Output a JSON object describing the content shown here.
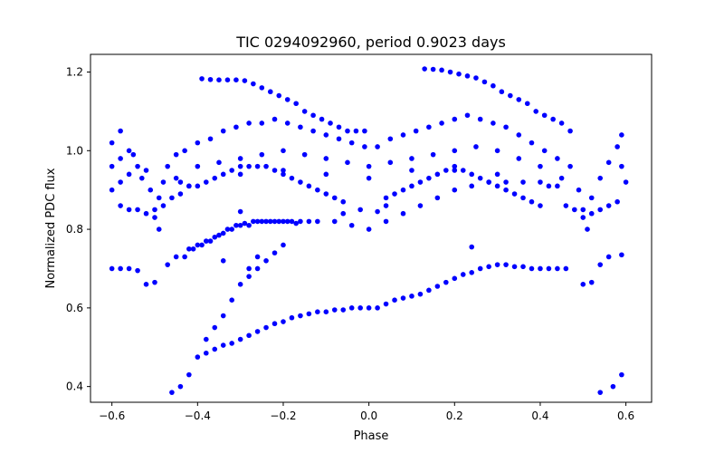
{
  "chart_data": {
    "type": "scatter",
    "title": "TIC 0294092960, period 0.9023 days",
    "xlabel": "Phase",
    "ylabel": "Normalized PDC flux",
    "xlim": [
      -0.65,
      0.66
    ],
    "ylim": [
      0.36,
      1.245
    ],
    "xticks": [
      -0.6,
      -0.4,
      -0.2,
      0.0,
      0.2,
      0.4,
      0.6
    ],
    "xtick_labels": [
      "−0.6",
      "−0.4",
      "−0.2",
      "0.0",
      "0.2",
      "0.4",
      "0.6"
    ],
    "yticks": [
      0.4,
      0.6,
      0.8,
      1.0,
      1.2
    ],
    "ytick_labels": [
      "0.4",
      "0.6",
      "0.8",
      "1.0",
      "1.2"
    ],
    "grid": false,
    "legend": "none",
    "marker_color": "#0000ff",
    "series": [
      {
        "points": [
          [
            -0.6,
            1.02
          ],
          [
            -0.6,
            0.96
          ],
          [
            -0.6,
            0.9
          ],
          [
            -0.58,
            1.05
          ],
          [
            -0.58,
            0.98
          ],
          [
            -0.58,
            0.92
          ],
          [
            -0.56,
            1.0
          ],
          [
            -0.56,
            0.94
          ],
          [
            -0.55,
            0.99
          ],
          [
            -0.54,
            0.96
          ],
          [
            -0.53,
            0.93
          ],
          [
            -0.52,
            0.95
          ],
          [
            -0.51,
            0.9
          ],
          [
            -0.5,
            0.85
          ],
          [
            -0.49,
            0.8
          ],
          [
            -0.49,
            0.88
          ],
          [
            -0.48,
            0.92
          ],
          [
            -0.47,
            0.96
          ],
          [
            -0.45,
            0.99
          ],
          [
            -0.43,
            1.0
          ],
          [
            -0.4,
            1.02
          ],
          [
            -0.37,
            1.03
          ],
          [
            -0.34,
            1.05
          ],
          [
            -0.31,
            1.06
          ],
          [
            -0.28,
            1.07
          ],
          [
            -0.25,
            1.07
          ],
          [
            -0.22,
            1.08
          ],
          [
            -0.19,
            1.07
          ],
          [
            -0.16,
            1.06
          ],
          [
            -0.13,
            1.05
          ],
          [
            -0.1,
            1.04
          ],
          [
            -0.07,
            1.03
          ],
          [
            -0.04,
            1.02
          ],
          [
            -0.01,
            1.01
          ],
          [
            0.02,
            1.01
          ],
          [
            0.05,
            1.03
          ],
          [
            0.08,
            1.04
          ],
          [
            0.11,
            1.05
          ],
          [
            0.14,
            1.06
          ],
          [
            0.17,
            1.07
          ],
          [
            0.2,
            1.08
          ],
          [
            0.23,
            1.09
          ],
          [
            0.26,
            1.08
          ],
          [
            0.29,
            1.07
          ],
          [
            0.32,
            1.06
          ],
          [
            0.35,
            1.04
          ],
          [
            0.38,
            1.02
          ],
          [
            0.41,
            1.0
          ],
          [
            0.44,
            0.98
          ],
          [
            0.47,
            0.96
          ],
          [
            0.49,
            0.9
          ],
          [
            0.5,
            0.85
          ],
          [
            0.51,
            0.8
          ],
          [
            0.52,
            0.88
          ],
          [
            0.54,
            0.93
          ],
          [
            0.56,
            0.97
          ],
          [
            0.58,
            1.01
          ],
          [
            0.59,
            1.04
          ],
          [
            0.59,
            0.96
          ],
          [
            0.6,
            0.92
          ],
          [
            -0.4,
            0.96
          ],
          [
            -0.35,
            0.97
          ],
          [
            -0.3,
            0.98
          ],
          [
            -0.25,
            0.99
          ],
          [
            -0.2,
            1.0
          ],
          [
            -0.15,
            0.99
          ],
          [
            -0.1,
            0.98
          ],
          [
            -0.05,
            0.97
          ],
          [
            0.0,
            0.96
          ],
          [
            0.05,
            0.97
          ],
          [
            0.1,
            0.98
          ],
          [
            0.15,
            0.99
          ],
          [
            0.2,
            1.0
          ],
          [
            0.25,
            1.01
          ],
          [
            0.3,
            1.0
          ],
          [
            0.35,
            0.98
          ],
          [
            0.4,
            0.96
          ],
          [
            -0.45,
            0.93
          ],
          [
            0.45,
            0.93
          ],
          [
            -0.42,
            0.91
          ],
          [
            0.42,
            0.91
          ],
          [
            -0.3,
            0.94
          ],
          [
            0.3,
            0.94
          ],
          [
            -0.2,
            0.95
          ],
          [
            0.2,
            0.96
          ],
          [
            -0.1,
            0.94
          ],
          [
            0.1,
            0.95
          ],
          [
            0.0,
            0.93
          ],
          [
            -0.39,
            1.183
          ],
          [
            -0.37,
            1.181
          ],
          [
            -0.35,
            1.18
          ],
          [
            -0.33,
            1.18
          ],
          [
            -0.31,
            1.18
          ],
          [
            -0.29,
            1.178
          ],
          [
            -0.27,
            1.17
          ],
          [
            -0.25,
            1.16
          ],
          [
            -0.23,
            1.15
          ],
          [
            -0.21,
            1.14
          ],
          [
            -0.19,
            1.13
          ],
          [
            -0.17,
            1.12
          ],
          [
            -0.15,
            1.1
          ],
          [
            -0.13,
            1.09
          ],
          [
            -0.11,
            1.08
          ],
          [
            -0.09,
            1.07
          ],
          [
            -0.07,
            1.06
          ],
          [
            -0.05,
            1.05
          ],
          [
            -0.03,
            1.05
          ],
          [
            -0.01,
            1.05
          ],
          [
            0.13,
            1.208
          ],
          [
            0.15,
            1.207
          ],
          [
            0.17,
            1.205
          ],
          [
            0.19,
            1.2
          ],
          [
            0.21,
            1.195
          ],
          [
            0.23,
            1.19
          ],
          [
            0.25,
            1.185
          ],
          [
            0.27,
            1.175
          ],
          [
            0.29,
            1.165
          ],
          [
            0.31,
            1.15
          ],
          [
            0.33,
            1.14
          ],
          [
            0.35,
            1.13
          ],
          [
            0.37,
            1.12
          ],
          [
            0.39,
            1.1
          ],
          [
            0.41,
            1.09
          ],
          [
            0.43,
            1.08
          ],
          [
            0.45,
            1.07
          ],
          [
            0.47,
            1.05
          ],
          [
            -0.44,
            0.92
          ],
          [
            -0.42,
            0.91
          ],
          [
            -0.4,
            0.91
          ],
          [
            -0.38,
            0.92
          ],
          [
            -0.36,
            0.93
          ],
          [
            -0.34,
            0.94
          ],
          [
            -0.32,
            0.95
          ],
          [
            -0.3,
            0.96
          ],
          [
            -0.28,
            0.96
          ],
          [
            -0.26,
            0.96
          ],
          [
            -0.24,
            0.96
          ],
          [
            -0.22,
            0.95
          ],
          [
            -0.2,
            0.94
          ],
          [
            -0.18,
            0.93
          ],
          [
            -0.16,
            0.92
          ],
          [
            -0.14,
            0.91
          ],
          [
            -0.12,
            0.9
          ],
          [
            -0.1,
            0.89
          ],
          [
            -0.08,
            0.88
          ],
          [
            -0.06,
            0.87
          ],
          [
            0.04,
            0.88
          ],
          [
            0.06,
            0.89
          ],
          [
            0.08,
            0.9
          ],
          [
            0.1,
            0.91
          ],
          [
            0.12,
            0.92
          ],
          [
            0.14,
            0.93
          ],
          [
            0.16,
            0.94
          ],
          [
            0.18,
            0.95
          ],
          [
            0.2,
            0.95
          ],
          [
            0.22,
            0.95
          ],
          [
            0.24,
            0.94
          ],
          [
            0.26,
            0.93
          ],
          [
            0.28,
            0.92
          ],
          [
            0.3,
            0.91
          ],
          [
            0.32,
            0.9
          ],
          [
            0.34,
            0.89
          ],
          [
            0.36,
            0.88
          ],
          [
            0.38,
            0.87
          ],
          [
            0.4,
            0.86
          ],
          [
            -0.58,
            0.86
          ],
          [
            -0.56,
            0.85
          ],
          [
            -0.54,
            0.85
          ],
          [
            -0.52,
            0.84
          ],
          [
            -0.5,
            0.83
          ],
          [
            -0.48,
            0.86
          ],
          [
            -0.46,
            0.88
          ],
          [
            -0.44,
            0.89
          ],
          [
            0.46,
            0.86
          ],
          [
            0.48,
            0.85
          ],
          [
            0.5,
            0.83
          ],
          [
            0.52,
            0.84
          ],
          [
            0.54,
            0.85
          ],
          [
            0.56,
            0.86
          ],
          [
            0.58,
            0.87
          ],
          [
            -0.42,
            0.75
          ],
          [
            -0.4,
            0.76
          ],
          [
            -0.38,
            0.77
          ],
          [
            -0.36,
            0.78
          ],
          [
            -0.34,
            0.79
          ],
          [
            -0.32,
            0.8
          ],
          [
            -0.3,
            0.81
          ],
          [
            -0.28,
            0.81
          ],
          [
            -0.26,
            0.82
          ],
          [
            -0.24,
            0.82
          ],
          [
            -0.22,
            0.82
          ],
          [
            -0.2,
            0.82
          ],
          [
            -0.18,
            0.82
          ],
          [
            -0.16,
            0.82
          ],
          [
            -0.14,
            0.82
          ],
          [
            -0.12,
            0.82
          ],
          [
            -0.08,
            0.82
          ],
          [
            -0.04,
            0.81
          ],
          [
            0.0,
            0.8
          ],
          [
            0.04,
            0.82
          ],
          [
            0.08,
            0.84
          ],
          [
            0.12,
            0.86
          ],
          [
            0.16,
            0.88
          ],
          [
            0.2,
            0.9
          ],
          [
            0.24,
            0.91
          ],
          [
            0.28,
            0.92
          ],
          [
            0.32,
            0.92
          ],
          [
            0.36,
            0.92
          ],
          [
            0.4,
            0.92
          ],
          [
            0.44,
            0.91
          ],
          [
            -0.3,
            0.845
          ],
          [
            -0.02,
            0.85
          ],
          [
            0.02,
            0.845
          ],
          [
            0.04,
            0.86
          ],
          [
            -0.06,
            0.84
          ],
          [
            0.24,
            0.755
          ],
          [
            -0.6,
            0.7
          ],
          [
            -0.58,
            0.7
          ],
          [
            -0.56,
            0.7
          ],
          [
            -0.54,
            0.695
          ],
          [
            -0.52,
            0.66
          ],
          [
            -0.5,
            0.665
          ],
          [
            -0.47,
            0.71
          ],
          [
            -0.45,
            0.73
          ],
          [
            -0.43,
            0.73
          ],
          [
            -0.41,
            0.75
          ],
          [
            -0.39,
            0.76
          ],
          [
            -0.37,
            0.77
          ],
          [
            -0.35,
            0.785
          ],
          [
            -0.33,
            0.8
          ],
          [
            -0.31,
            0.81
          ],
          [
            -0.29,
            0.815
          ],
          [
            -0.27,
            0.82
          ],
          [
            -0.25,
            0.82
          ],
          [
            -0.23,
            0.82
          ],
          [
            -0.21,
            0.82
          ],
          [
            -0.19,
            0.82
          ],
          [
            -0.17,
            0.815
          ],
          [
            -0.34,
            0.72
          ],
          [
            -0.2,
            0.76
          ],
          [
            -0.22,
            0.74
          ],
          [
            -0.24,
            0.72
          ],
          [
            -0.26,
            0.7
          ],
          [
            -0.28,
            0.68
          ],
          [
            -0.46,
            0.385
          ],
          [
            -0.44,
            0.4
          ],
          [
            -0.42,
            0.43
          ],
          [
            -0.4,
            0.475
          ],
          [
            -0.38,
            0.485
          ],
          [
            -0.36,
            0.495
          ],
          [
            -0.34,
            0.505
          ],
          [
            -0.32,
            0.51
          ],
          [
            -0.3,
            0.52
          ],
          [
            -0.28,
            0.53
          ],
          [
            -0.26,
            0.54
          ],
          [
            -0.24,
            0.55
          ],
          [
            -0.22,
            0.56
          ],
          [
            -0.2,
            0.565
          ],
          [
            -0.18,
            0.575
          ],
          [
            -0.16,
            0.58
          ],
          [
            -0.14,
            0.585
          ],
          [
            -0.12,
            0.59
          ],
          [
            -0.1,
            0.59
          ],
          [
            -0.08,
            0.595
          ],
          [
            -0.06,
            0.595
          ],
          [
            -0.04,
            0.6
          ],
          [
            -0.02,
            0.6
          ],
          [
            0.0,
            0.6
          ],
          [
            0.02,
            0.6
          ],
          [
            0.04,
            0.61
          ],
          [
            0.06,
            0.62
          ],
          [
            0.08,
            0.625
          ],
          [
            0.1,
            0.63
          ],
          [
            0.12,
            0.635
          ],
          [
            0.14,
            0.645
          ],
          [
            0.16,
            0.655
          ],
          [
            0.18,
            0.665
          ],
          [
            0.2,
            0.675
          ],
          [
            0.22,
            0.685
          ],
          [
            0.24,
            0.69
          ],
          [
            0.26,
            0.7
          ],
          [
            0.28,
            0.705
          ],
          [
            0.3,
            0.71
          ],
          [
            0.32,
            0.71
          ],
          [
            0.34,
            0.705
          ],
          [
            0.36,
            0.705
          ],
          [
            0.38,
            0.7
          ],
          [
            0.4,
            0.7
          ],
          [
            0.42,
            0.7
          ],
          [
            0.44,
            0.7
          ],
          [
            0.46,
            0.7
          ],
          [
            -0.38,
            0.52
          ],
          [
            -0.36,
            0.55
          ],
          [
            -0.34,
            0.58
          ],
          [
            -0.32,
            0.62
          ],
          [
            -0.3,
            0.66
          ],
          [
            -0.28,
            0.7
          ],
          [
            -0.26,
            0.73
          ],
          [
            0.5,
            0.66
          ],
          [
            0.52,
            0.665
          ],
          [
            0.54,
            0.71
          ],
          [
            0.56,
            0.73
          ],
          [
            0.59,
            0.735
          ],
          [
            0.54,
            0.385
          ],
          [
            0.57,
            0.4
          ],
          [
            0.59,
            0.43
          ]
        ]
      }
    ]
  }
}
